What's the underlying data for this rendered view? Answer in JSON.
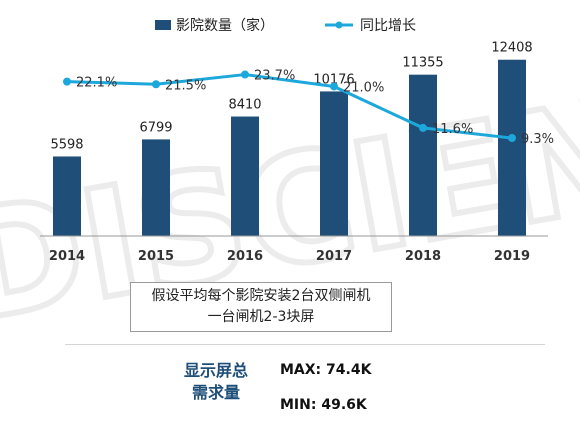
{
  "chart_data": {
    "type": "bar+line",
    "categories": [
      "2014",
      "2015",
      "2016",
      "2017",
      "2018",
      "2019"
    ],
    "series": [
      {
        "name": "影院数量（家）",
        "type": "bar",
        "color": "#1f4e79",
        "values": [
          5598,
          6799,
          8410,
          10176,
          11355,
          12408
        ]
      },
      {
        "name": "同比增长",
        "type": "line",
        "color": "#1da8dc",
        "values": [
          22.1,
          21.5,
          23.7,
          21.0,
          11.6,
          9.3
        ],
        "labels": [
          "22.1%",
          "21.5%",
          "23.7%",
          "21.0%",
          "11.6%",
          "9.3%"
        ]
      }
    ],
    "bar_ylim": [
      0,
      14500
    ],
    "line_ylim": [
      -12,
      27
    ],
    "legend_position": "top",
    "grid": false
  },
  "note": {
    "line1": "假设平均每个影院安装2台双侧闸机",
    "line2": "一台闸机2-3块屏"
  },
  "demand": {
    "label_line1": "显示屏总",
    "label_line2": "需求量",
    "max": "MAX: 74.4K",
    "min": "MIN: 49.6K"
  },
  "watermark": "DISCIEN"
}
